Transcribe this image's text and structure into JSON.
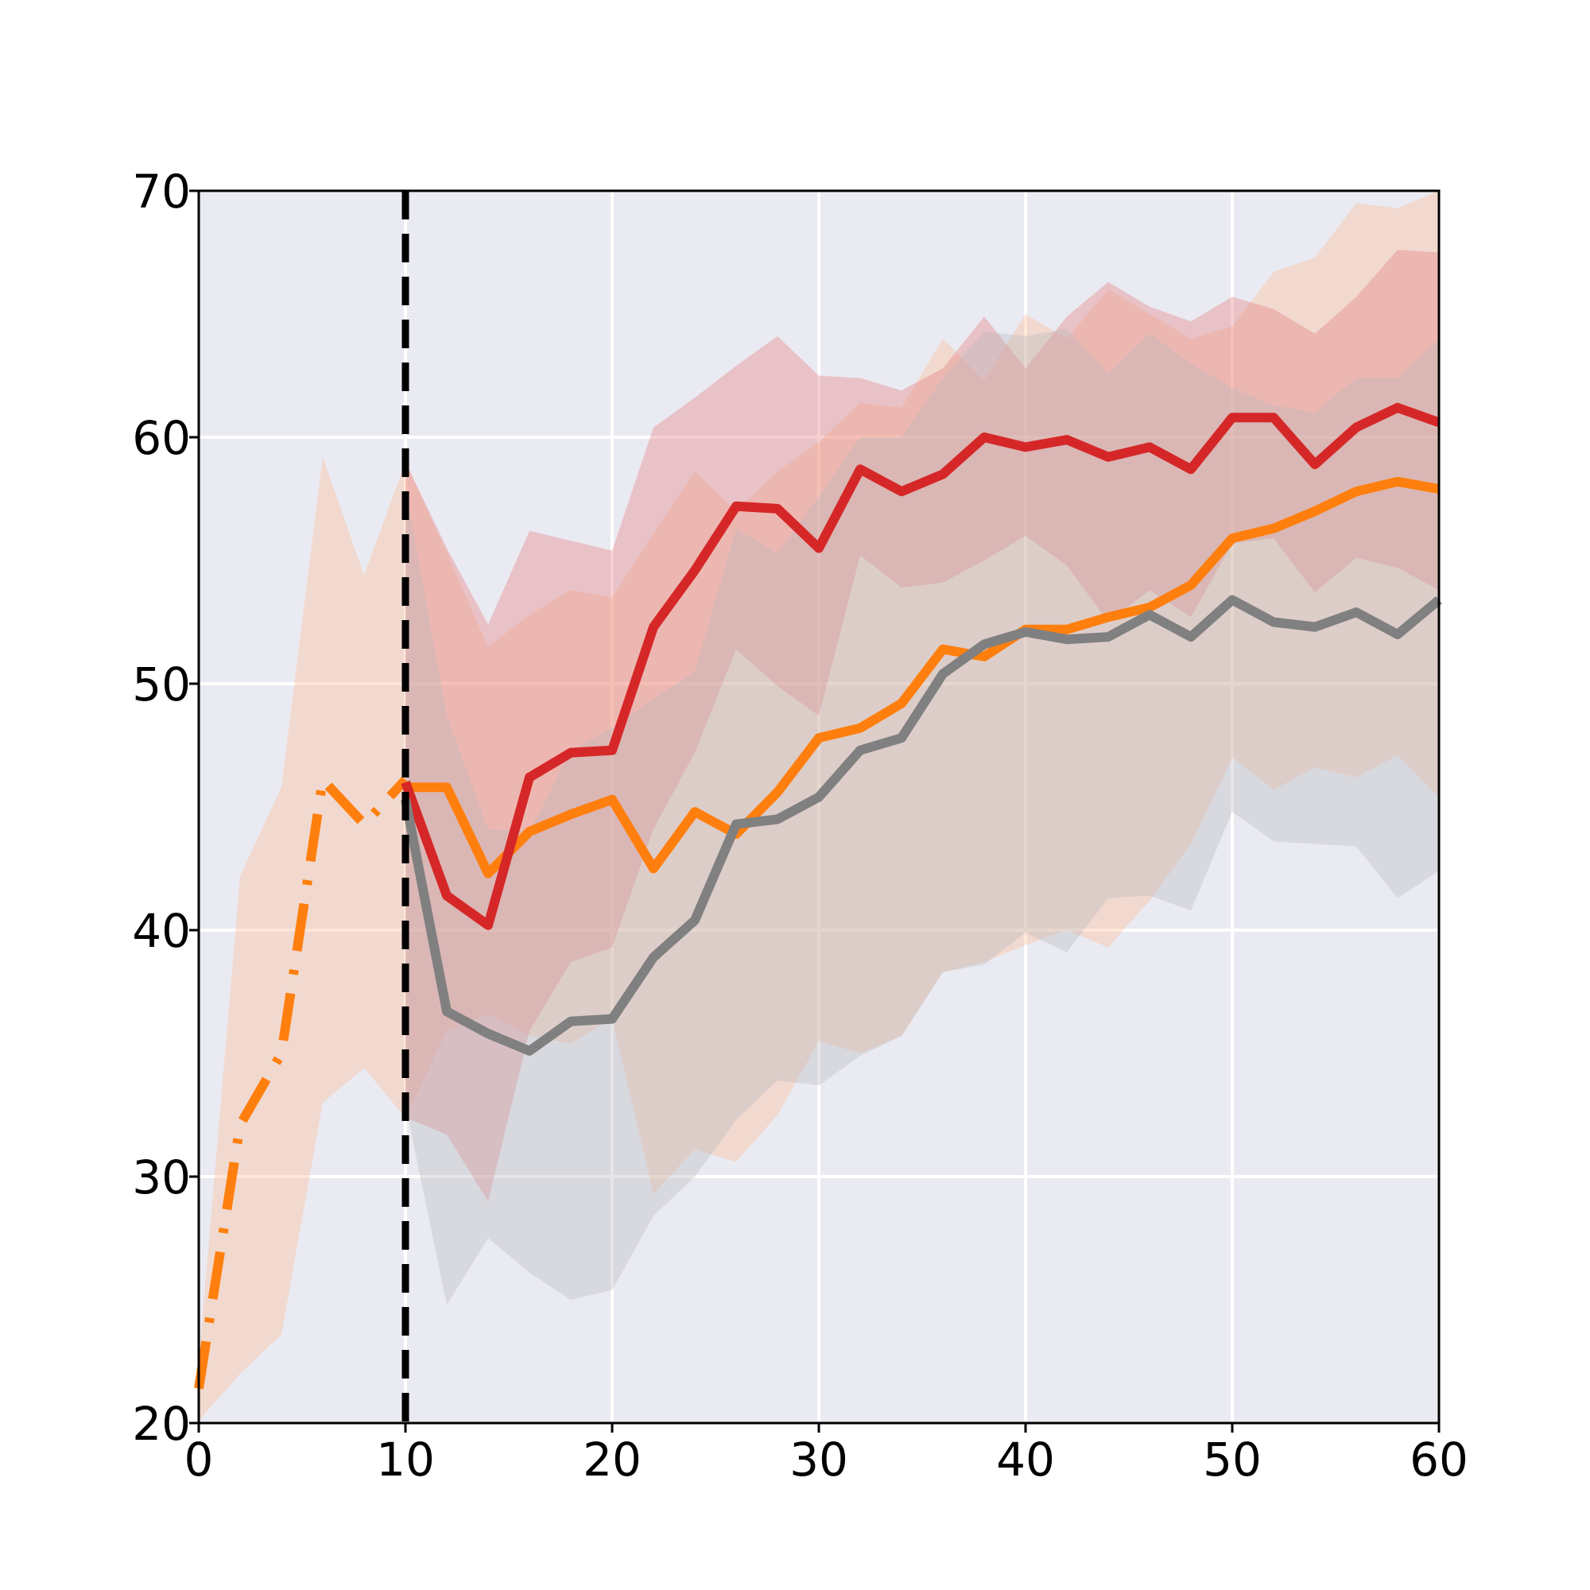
{
  "chart_data": {
    "type": "line",
    "title": "",
    "xlabel": "",
    "ylabel": "",
    "xlim": [
      0,
      60
    ],
    "ylim": [
      20,
      70
    ],
    "x_ticks": [
      0,
      10,
      20,
      30,
      40,
      50,
      60
    ],
    "y_ticks": [
      20,
      30,
      40,
      50,
      60,
      70
    ],
    "x_tick_labels": [
      "0",
      "10",
      "20",
      "30",
      "40",
      "50",
      "60"
    ],
    "y_tick_labels": [
      "20",
      "30",
      "40",
      "50",
      "60",
      "70"
    ],
    "grid": true,
    "background": "#eaeaf2",
    "vertical_line": {
      "x": 10,
      "style": "dashed",
      "color": "#000000"
    },
    "series": [
      {
        "style": "dashdot",
        "color": "#ff7f0e",
        "band_color": "#ffbb90",
        "x": [
          0,
          2,
          4,
          6,
          8,
          10
        ],
        "values": [
          21.4,
          32.1,
          35.0,
          46.1,
          44.3,
          46.1
        ],
        "upper": [
          22.5,
          42.2,
          45.8,
          59.2,
          54.4,
          59.0
        ],
        "lower": [
          20.1,
          22.0,
          23.6,
          33.0,
          34.4,
          32.4
        ]
      },
      {
        "style": "solid",
        "color": "#ff7f0e",
        "band_color": "#ffbb90",
        "x": [
          10,
          12,
          14,
          16,
          18,
          20,
          22,
          24,
          26,
          28,
          30,
          32,
          34,
          36,
          38,
          40,
          42,
          44,
          46,
          48,
          50,
          52,
          54,
          56,
          58,
          60
        ],
        "values": [
          45.8,
          45.8,
          42.3,
          44.0,
          44.7,
          45.3,
          42.5,
          44.8,
          43.9,
          45.6,
          47.8,
          48.2,
          49.2,
          51.4,
          51.1,
          52.2,
          52.2,
          52.7,
          53.1,
          54.0,
          55.9,
          56.3,
          57.0,
          57.8,
          58.2,
          57.9
        ],
        "upper": [
          59.0,
          55.3,
          51.5,
          52.8,
          53.8,
          53.5,
          56.1,
          58.6,
          57.0,
          58.6,
          59.8,
          61.4,
          61.2,
          64.0,
          62.3,
          65.0,
          64.0,
          66.0,
          65.0,
          64.0,
          64.5,
          66.7,
          67.3,
          69.5,
          69.3,
          70.0
        ],
        "lower": [
          32.4,
          35.9,
          36.6,
          35.7,
          35.4,
          36.4,
          29.3,
          31.1,
          30.6,
          32.5,
          35.5,
          35.0,
          35.7,
          38.3,
          38.7,
          39.4,
          40.0,
          39.3,
          41.2,
          43.5,
          47.0,
          45.7,
          46.6,
          46.2,
          47.1,
          45.4
        ]
      },
      {
        "style": "solid",
        "color": "#d62728",
        "band_color": "#e47777",
        "x": [
          10,
          12,
          14,
          16,
          18,
          20,
          22,
          24,
          26,
          28,
          30,
          32,
          34,
          36,
          38,
          40,
          42,
          44,
          46,
          48,
          50,
          52,
          54,
          56,
          58,
          60
        ],
        "values": [
          46.0,
          41.4,
          40.2,
          46.2,
          47.2,
          47.3,
          52.3,
          54.6,
          57.2,
          57.1,
          55.5,
          58.7,
          57.8,
          58.5,
          60.0,
          59.6,
          59.9,
          59.2,
          59.6,
          58.7,
          60.8,
          60.8,
          58.9,
          60.4,
          61.2,
          60.6
        ],
        "upper": [
          59.0,
          55.5,
          52.4,
          56.2,
          55.8,
          55.4,
          60.4,
          61.6,
          62.9,
          64.1,
          62.5,
          62.4,
          61.9,
          62.8,
          64.9,
          62.8,
          64.9,
          66.3,
          65.3,
          64.7,
          65.7,
          65.2,
          64.2,
          65.7,
          67.6,
          67.5
        ],
        "lower": [
          32.4,
          31.7,
          29.0,
          35.9,
          38.7,
          39.3,
          44.1,
          47.2,
          51.4,
          49.9,
          48.7,
          55.2,
          53.9,
          54.1,
          55.0,
          56.0,
          54.8,
          52.5,
          53.8,
          52.7,
          55.7,
          55.9,
          53.7,
          55.1,
          54.7,
          53.8
        ]
      },
      {
        "style": "solid",
        "color": "#808080",
        "band_color": "#b8b8be",
        "x": [
          10,
          12,
          14,
          16,
          18,
          20,
          22,
          24,
          26,
          28,
          30,
          32,
          34,
          36,
          38,
          40,
          42,
          44,
          46,
          48,
          50,
          52,
          54,
          56,
          58,
          60
        ],
        "values": [
          45.3,
          36.7,
          35.8,
          35.1,
          36.3,
          36.4,
          38.9,
          40.4,
          44.3,
          44.5,
          45.4,
          47.3,
          47.8,
          50.4,
          51.6,
          52.1,
          51.8,
          51.9,
          52.8,
          51.9,
          53.4,
          52.5,
          52.3,
          52.9,
          52.0,
          53.4
        ],
        "upper": [
          57.9,
          48.7,
          44.1,
          44.0,
          47.3,
          48.2,
          49.4,
          50.5,
          56.3,
          55.3,
          57.6,
          60.0,
          60.0,
          62.4,
          64.3,
          64.1,
          64.4,
          62.6,
          64.2,
          63.0,
          62.0,
          61.3,
          61.0,
          62.4,
          62.4,
          64.0
        ],
        "lower": [
          32.9,
          24.8,
          27.5,
          26.1,
          25.0,
          25.4,
          28.4,
          30.0,
          32.3,
          33.9,
          33.7,
          34.9,
          35.7,
          38.3,
          38.6,
          39.9,
          39.1,
          41.3,
          41.4,
          40.8,
          44.8,
          43.6,
          43.5,
          43.4,
          41.3,
          42.4
        ]
      }
    ]
  }
}
